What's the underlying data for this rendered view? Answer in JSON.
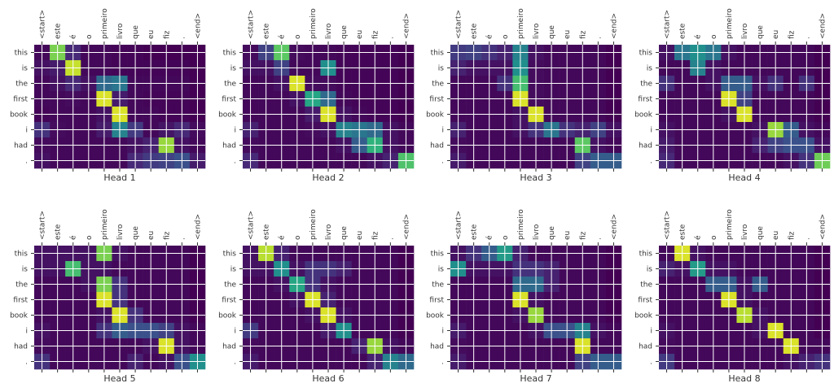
{
  "chart_data": {
    "type": "heatmap",
    "x_tokens": [
      "<start>",
      "este",
      "é",
      "o",
      "primeiro",
      "livro",
      "que",
      "eu",
      "fiz",
      ".",
      "<end>"
    ],
    "y_tokens": [
      "this",
      "is",
      "the",
      "first",
      "book",
      "i",
      "had",
      "."
    ],
    "value_range": [
      0,
      1
    ],
    "colormap": "viridis",
    "grid": true,
    "heads": [
      {
        "title": "Head 1",
        "values": [
          [
            0.02,
            0.8,
            0.12,
            0.02,
            0.02,
            0.01,
            0.01,
            0.0,
            0.0,
            0.0,
            0.0
          ],
          [
            0.05,
            0.08,
            0.92,
            0.02,
            0.02,
            0.01,
            0.01,
            0.01,
            0.01,
            0.01,
            0.0
          ],
          [
            0.02,
            0.05,
            0.12,
            0.05,
            0.35,
            0.4,
            0.02,
            0.02,
            0.02,
            0.02,
            0.0
          ],
          [
            0.02,
            0.02,
            0.03,
            0.02,
            0.95,
            0.08,
            0.02,
            0.01,
            0.01,
            0.01,
            0.0
          ],
          [
            0.01,
            0.02,
            0.02,
            0.02,
            0.05,
            0.95,
            0.02,
            0.02,
            0.01,
            0.01,
            0.0
          ],
          [
            0.15,
            0.03,
            0.02,
            0.02,
            0.08,
            0.45,
            0.18,
            0.02,
            0.06,
            0.12,
            0.03
          ],
          [
            0.03,
            0.02,
            0.02,
            0.02,
            0.02,
            0.02,
            0.05,
            0.1,
            0.85,
            0.05,
            0.02
          ],
          [
            0.05,
            0.02,
            0.02,
            0.02,
            0.02,
            0.02,
            0.12,
            0.18,
            0.2,
            0.25,
            0.08
          ]
        ]
      },
      {
        "title": "Head 2",
        "values": [
          [
            0.03,
            0.2,
            0.75,
            0.03,
            0.02,
            0.02,
            0.01,
            0.01,
            0.01,
            0.01,
            0.0
          ],
          [
            0.05,
            0.05,
            0.2,
            0.02,
            0.02,
            0.5,
            0.01,
            0.01,
            0.01,
            0.01,
            0.0
          ],
          [
            0.02,
            0.02,
            0.05,
            0.95,
            0.03,
            0.03,
            0.01,
            0.01,
            0.01,
            0.01,
            0.0
          ],
          [
            0.02,
            0.02,
            0.02,
            0.05,
            0.6,
            0.35,
            0.02,
            0.01,
            0.01,
            0.01,
            0.0
          ],
          [
            0.02,
            0.02,
            0.02,
            0.02,
            0.08,
            0.95,
            0.05,
            0.02,
            0.01,
            0.01,
            0.0
          ],
          [
            0.1,
            0.02,
            0.02,
            0.02,
            0.03,
            0.05,
            0.45,
            0.4,
            0.35,
            0.05,
            0.02
          ],
          [
            0.03,
            0.02,
            0.02,
            0.02,
            0.02,
            0.02,
            0.05,
            0.3,
            0.65,
            0.05,
            0.02
          ],
          [
            0.12,
            0.02,
            0.02,
            0.02,
            0.02,
            0.02,
            0.02,
            0.02,
            0.05,
            0.1,
            0.72
          ]
        ]
      },
      {
        "title": "Head 3",
        "values": [
          [
            0.18,
            0.2,
            0.15,
            0.1,
            0.45,
            0.05,
            0.02,
            0.02,
            0.02,
            0.02,
            0.0
          ],
          [
            0.1,
            0.05,
            0.05,
            0.05,
            0.5,
            0.03,
            0.02,
            0.02,
            0.02,
            0.02,
            0.0
          ],
          [
            0.02,
            0.02,
            0.02,
            0.15,
            0.7,
            0.03,
            0.02,
            0.02,
            0.02,
            0.02,
            0.0
          ],
          [
            0.02,
            0.02,
            0.02,
            0.02,
            0.95,
            0.03,
            0.02,
            0.02,
            0.02,
            0.02,
            0.0
          ],
          [
            0.02,
            0.02,
            0.02,
            0.02,
            0.05,
            0.95,
            0.02,
            0.02,
            0.02,
            0.02,
            0.0
          ],
          [
            0.1,
            0.02,
            0.02,
            0.02,
            0.05,
            0.15,
            0.4,
            0.15,
            0.1,
            0.2,
            0.05
          ],
          [
            0.03,
            0.02,
            0.02,
            0.02,
            0.02,
            0.02,
            0.02,
            0.02,
            0.75,
            0.05,
            0.02
          ],
          [
            0.08,
            0.02,
            0.02,
            0.02,
            0.02,
            0.02,
            0.02,
            0.02,
            0.2,
            0.3,
            0.3
          ]
        ]
      },
      {
        "title": "Head 4",
        "values": [
          [
            0.05,
            0.4,
            0.5,
            0.4,
            0.05,
            0.02,
            0.02,
            0.02,
            0.02,
            0.02,
            0.0
          ],
          [
            0.02,
            0.02,
            0.45,
            0.05,
            0.02,
            0.02,
            0.02,
            0.02,
            0.02,
            0.02,
            0.0
          ],
          [
            0.15,
            0.02,
            0.02,
            0.05,
            0.3,
            0.3,
            0.05,
            0.15,
            0.02,
            0.15,
            0.0
          ],
          [
            0.02,
            0.02,
            0.02,
            0.02,
            0.95,
            0.2,
            0.02,
            0.02,
            0.02,
            0.02,
            0.0
          ],
          [
            0.02,
            0.02,
            0.02,
            0.02,
            0.05,
            0.95,
            0.02,
            0.02,
            0.02,
            0.02,
            0.0
          ],
          [
            0.05,
            0.02,
            0.02,
            0.02,
            0.02,
            0.02,
            0.05,
            0.85,
            0.3,
            0.05,
            0.02
          ],
          [
            0.08,
            0.02,
            0.02,
            0.02,
            0.02,
            0.02,
            0.1,
            0.2,
            0.25,
            0.25,
            0.05
          ],
          [
            0.12,
            0.02,
            0.02,
            0.02,
            0.02,
            0.02,
            0.02,
            0.02,
            0.05,
            0.15,
            0.78
          ]
        ]
      },
      {
        "title": "Head 5",
        "values": [
          [
            0.05,
            0.05,
            0.05,
            0.05,
            0.8,
            0.05,
            0.02,
            0.02,
            0.02,
            0.02,
            0.0
          ],
          [
            0.05,
            0.05,
            0.7,
            0.05,
            0.05,
            0.02,
            0.02,
            0.02,
            0.02,
            0.02,
            0.0
          ],
          [
            0.02,
            0.02,
            0.02,
            0.05,
            0.8,
            0.15,
            0.02,
            0.02,
            0.02,
            0.02,
            0.0
          ],
          [
            0.02,
            0.02,
            0.02,
            0.02,
            0.95,
            0.15,
            0.02,
            0.02,
            0.02,
            0.02,
            0.0
          ],
          [
            0.02,
            0.02,
            0.02,
            0.02,
            0.05,
            0.95,
            0.15,
            0.02,
            0.02,
            0.02,
            0.0
          ],
          [
            0.05,
            0.02,
            0.02,
            0.02,
            0.15,
            0.3,
            0.25,
            0.25,
            0.2,
            0.05,
            0.02
          ],
          [
            0.03,
            0.02,
            0.02,
            0.02,
            0.02,
            0.02,
            0.02,
            0.05,
            0.95,
            0.05,
            0.02
          ],
          [
            0.15,
            0.02,
            0.02,
            0.02,
            0.02,
            0.02,
            0.1,
            0.02,
            0.05,
            0.25,
            0.5
          ]
        ]
      },
      {
        "title": "Head 6",
        "values": [
          [
            0.05,
            0.9,
            0.1,
            0.02,
            0.02,
            0.02,
            0.02,
            0.02,
            0.02,
            0.02,
            0.0
          ],
          [
            0.05,
            0.05,
            0.5,
            0.05,
            0.15,
            0.15,
            0.1,
            0.02,
            0.02,
            0.02,
            0.0
          ],
          [
            0.02,
            0.02,
            0.05,
            0.6,
            0.15,
            0.05,
            0.02,
            0.02,
            0.02,
            0.02,
            0.0
          ],
          [
            0.02,
            0.02,
            0.02,
            0.05,
            0.95,
            0.1,
            0.02,
            0.02,
            0.02,
            0.02,
            0.0
          ],
          [
            0.02,
            0.02,
            0.02,
            0.02,
            0.05,
            0.95,
            0.05,
            0.02,
            0.02,
            0.02,
            0.0
          ],
          [
            0.18,
            0.02,
            0.02,
            0.02,
            0.02,
            0.08,
            0.5,
            0.02,
            0.02,
            0.02,
            0.0
          ],
          [
            0.03,
            0.02,
            0.02,
            0.02,
            0.02,
            0.02,
            0.02,
            0.1,
            0.85,
            0.05,
            0.02
          ],
          [
            0.08,
            0.02,
            0.02,
            0.02,
            0.02,
            0.02,
            0.02,
            0.02,
            0.1,
            0.45,
            0.35
          ]
        ]
      },
      {
        "title": "Head 7",
        "values": [
          [
            0.05,
            0.15,
            0.3,
            0.55,
            0.1,
            0.02,
            0.02,
            0.02,
            0.02,
            0.02,
            0.0
          ],
          [
            0.5,
            0.05,
            0.05,
            0.05,
            0.15,
            0.15,
            0.1,
            0.02,
            0.02,
            0.02,
            0.0
          ],
          [
            0.02,
            0.02,
            0.02,
            0.02,
            0.35,
            0.35,
            0.1,
            0.02,
            0.02,
            0.02,
            0.0
          ],
          [
            0.02,
            0.02,
            0.02,
            0.02,
            0.95,
            0.05,
            0.02,
            0.02,
            0.02,
            0.02,
            0.0
          ],
          [
            0.02,
            0.02,
            0.02,
            0.02,
            0.05,
            0.85,
            0.02,
            0.02,
            0.02,
            0.02,
            0.0
          ],
          [
            0.08,
            0.02,
            0.02,
            0.02,
            0.02,
            0.05,
            0.25,
            0.25,
            0.45,
            0.05,
            0.02
          ],
          [
            0.03,
            0.02,
            0.02,
            0.02,
            0.02,
            0.02,
            0.02,
            0.02,
            0.95,
            0.02,
            0.02
          ],
          [
            0.08,
            0.02,
            0.02,
            0.02,
            0.02,
            0.02,
            0.02,
            0.02,
            0.2,
            0.3,
            0.3
          ]
        ]
      },
      {
        "title": "Head 8",
        "values": [
          [
            0.02,
            0.95,
            0.05,
            0.02,
            0.02,
            0.02,
            0.02,
            0.02,
            0.02,
            0.02,
            0.0
          ],
          [
            0.1,
            0.05,
            0.55,
            0.05,
            0.05,
            0.02,
            0.02,
            0.02,
            0.02,
            0.02,
            0.0
          ],
          [
            0.02,
            0.02,
            0.02,
            0.3,
            0.3,
            0.05,
            0.3,
            0.02,
            0.02,
            0.02,
            0.0
          ],
          [
            0.02,
            0.02,
            0.02,
            0.02,
            0.95,
            0.05,
            0.02,
            0.02,
            0.02,
            0.02,
            0.0
          ],
          [
            0.02,
            0.02,
            0.02,
            0.02,
            0.02,
            0.9,
            0.05,
            0.02,
            0.02,
            0.02,
            0.0
          ],
          [
            0.05,
            0.02,
            0.02,
            0.02,
            0.02,
            0.02,
            0.05,
            0.95,
            0.02,
            0.02,
            0.0
          ],
          [
            0.03,
            0.02,
            0.02,
            0.02,
            0.02,
            0.02,
            0.02,
            0.02,
            0.95,
            0.02,
            0.02
          ],
          [
            0.18,
            0.02,
            0.02,
            0.02,
            0.02,
            0.02,
            0.02,
            0.02,
            0.05,
            0.1,
            0.15
          ]
        ]
      }
    ]
  }
}
